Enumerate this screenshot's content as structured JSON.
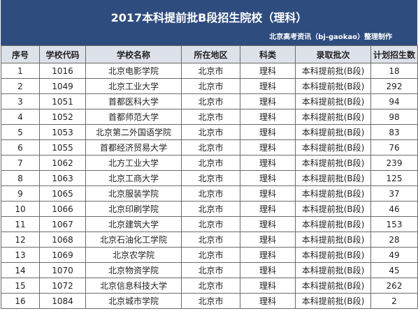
{
  "title": "2017本科提前批B段招生院校（理科）",
  "subtitle": "北京高考资讯（bj-gaokao）整理制作",
  "columns": [
    "序号",
    "学校代码",
    "学校名称",
    "所在地区",
    "科类",
    "录取批次",
    "计划招生数"
  ],
  "rows": [
    [
      "1",
      "1016",
      "北京电影学院",
      "北京市",
      "理科",
      "本科提前批(B段)",
      "18"
    ],
    [
      "2",
      "1049",
      "北京工业大学",
      "北京市",
      "理科",
      "本科提前批(B段)",
      "292"
    ],
    [
      "3",
      "1051",
      "首都医科大学",
      "北京市",
      "理科",
      "本科提前批(B段)",
      "94"
    ],
    [
      "4",
      "1052",
      "首都师范大学",
      "北京市",
      "理科",
      "本科提前批(B段)",
      "98"
    ],
    [
      "5",
      "1053",
      "北京第二外国语学院",
      "北京市",
      "理科",
      "本科提前批(B段)",
      "83"
    ],
    [
      "6",
      "1055",
      "首都经济贸易大学",
      "北京市",
      "理科",
      "本科提前批(B段)",
      "76"
    ],
    [
      "7",
      "1062",
      "北方工业大学",
      "北京市",
      "理科",
      "本科提前批(B段)",
      "239"
    ],
    [
      "8",
      "1063",
      "北京工商大学",
      "北京市",
      "理科",
      "本科提前批(B段)",
      "125"
    ],
    [
      "9",
      "1065",
      "北京服装学院",
      "北京市",
      "理科",
      "本科提前批(B段)",
      "37"
    ],
    [
      "10",
      "1066",
      "北京印刷学院",
      "北京市",
      "理科",
      "本科提前批(B段)",
      "46"
    ],
    [
      "11",
      "1067",
      "北京建筑大学",
      "北京市",
      "理科",
      "本科提前批(B段)",
      "153"
    ],
    [
      "12",
      "1068",
      "北京石油化工学院",
      "北京市",
      "理科",
      "本科提前批(B段)",
      "28"
    ],
    [
      "13",
      "1069",
      "北京农学院",
      "北京市",
      "理科",
      "本科提前批(B段)",
      "49"
    ],
    [
      "14",
      "1070",
      "北京物资学院",
      "北京市",
      "理科",
      "本科提前批(B段)",
      "45"
    ],
    [
      "15",
      "1072",
      "北京信息科技大学",
      "北京市",
      "理科",
      "本科提前批(B段)",
      "262"
    ],
    [
      "16",
      "1084",
      "北京城市学院",
      "北京市",
      "理科",
      "本科提前批(B段)",
      "2"
    ]
  ],
  "colors": {
    "header_bg": "#2e4c7e",
    "column_header_bg": "#dde2ea",
    "border": "#6a6a6a"
  }
}
